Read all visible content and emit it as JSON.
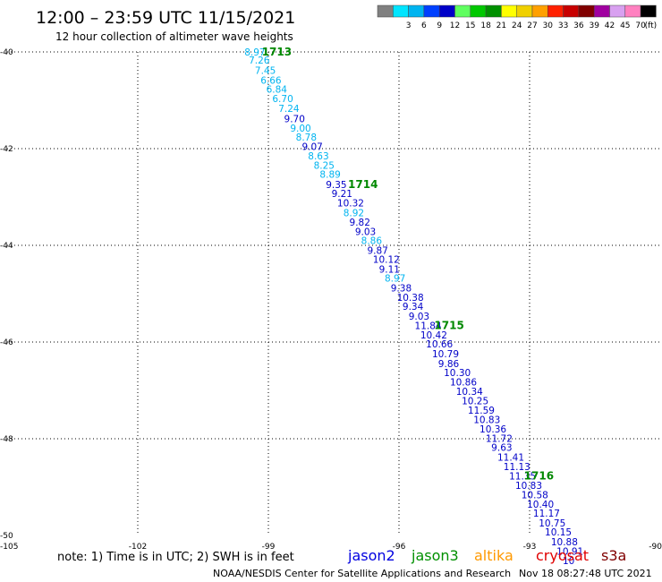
{
  "header": {
    "title": "12:00 – 23:59 UTC 11/15/2021",
    "subtitle": "12 hour collection of altimeter wave heights"
  },
  "legend": {
    "unit_label": "(ft)",
    "bins": [
      {
        "label": "",
        "color": "#808080"
      },
      {
        "label": "3",
        "color": "#00e5ff"
      },
      {
        "label": "6",
        "color": "#00b4f0"
      },
      {
        "label": "9",
        "color": "#0040ff"
      },
      {
        "label": "12",
        "color": "#0000c8"
      },
      {
        "label": "15",
        "color": "#60ff60"
      },
      {
        "label": "18",
        "color": "#00c800"
      },
      {
        "label": "21",
        "color": "#009000"
      },
      {
        "label": "24",
        "color": "#ffff00"
      },
      {
        "label": "27",
        "color": "#f0d000"
      },
      {
        "label": "30",
        "color": "#ffa000"
      },
      {
        "label": "33",
        "color": "#ff2000"
      },
      {
        "label": "36",
        "color": "#c80000"
      },
      {
        "label": "39",
        "color": "#800000"
      },
      {
        "label": "42",
        "color": "#a000a0"
      },
      {
        "label": "45",
        "color": "#d8a0f0"
      },
      {
        "label": "70",
        "color": "#ff80c0"
      },
      {
        "label": "",
        "color": "#000000"
      }
    ]
  },
  "axes": {
    "lon_ticks": [
      "-105",
      "-102",
      "-99",
      "-96",
      "-93",
      "-90"
    ],
    "lat_ticks": [
      "-40",
      "-42",
      "-44",
      "-46",
      "-48",
      "-50"
    ]
  },
  "map_data": {
    "lon_range": [
      -105,
      -90
    ],
    "lat_range": [
      -50,
      -40
    ],
    "lon_grid": [
      -102,
      -99,
      -96,
      -93
    ],
    "lat_grid": [
      -40,
      -42,
      -44,
      -46,
      -48
    ],
    "observations": [
      {
        "swh": "8.97",
        "lon": -99.55,
        "lat": -40.0,
        "color": "#00b4f0"
      },
      {
        "swh": "7.26",
        "lon": -99.45,
        "lat": -40.17,
        "color": "#00b4f0"
      },
      {
        "swh": "7.45",
        "lon": -99.31,
        "lat": -40.38,
        "color": "#00b4f0"
      },
      {
        "swh": "6.66",
        "lon": -99.18,
        "lat": -40.58,
        "color": "#00b4f0"
      },
      {
        "swh": "6.84",
        "lon": -99.05,
        "lat": -40.77,
        "color": "#00b4f0"
      },
      {
        "swh": "6.70",
        "lon": -98.91,
        "lat": -40.96,
        "color": "#00b4f0"
      },
      {
        "swh": "7.24",
        "lon": -98.77,
        "lat": -41.17,
        "color": "#00b4f0"
      },
      {
        "swh": "9.70",
        "lon": -98.64,
        "lat": -41.38,
        "color": "#0000c8"
      },
      {
        "swh": "9.00",
        "lon": -98.5,
        "lat": -41.57,
        "color": "#00b4f0"
      },
      {
        "swh": "8.78",
        "lon": -98.37,
        "lat": -41.76,
        "color": "#00b4f0"
      },
      {
        "swh": "9.07",
        "lon": -98.23,
        "lat": -41.95,
        "color": "#0000c8"
      },
      {
        "swh": "8.63",
        "lon": -98.09,
        "lat": -42.15,
        "color": "#00b4f0"
      },
      {
        "swh": "8.25",
        "lon": -97.96,
        "lat": -42.34,
        "color": "#00b4f0"
      },
      {
        "swh": "8.89",
        "lon": -97.82,
        "lat": -42.53,
        "color": "#00b4f0"
      },
      {
        "swh": "9.35",
        "lon": -97.68,
        "lat": -42.74,
        "color": "#0000c8"
      },
      {
        "swh": "9.21",
        "lon": -97.55,
        "lat": -42.93,
        "color": "#0000c8"
      },
      {
        "swh": "10.32",
        "lon": -97.42,
        "lat": -43.12,
        "color": "#0000c8"
      },
      {
        "swh": "8.92",
        "lon": -97.28,
        "lat": -43.32,
        "color": "#00b4f0"
      },
      {
        "swh": "9.82",
        "lon": -97.14,
        "lat": -43.52,
        "color": "#0000c8"
      },
      {
        "swh": "9.03",
        "lon": -97.01,
        "lat": -43.71,
        "color": "#0000c8"
      },
      {
        "swh": "8.86",
        "lon": -96.87,
        "lat": -43.9,
        "color": "#00b4f0"
      },
      {
        "swh": "9.87",
        "lon": -96.73,
        "lat": -44.1,
        "color": "#0000c8"
      },
      {
        "swh": "10.12",
        "lon": -96.6,
        "lat": -44.29,
        "color": "#0000c8"
      },
      {
        "swh": "9.11",
        "lon": -96.46,
        "lat": -44.49,
        "color": "#0000c8"
      },
      {
        "swh": "8.97",
        "lon": -96.33,
        "lat": -44.68,
        "color": "#00b4f0"
      },
      {
        "swh": "9.38",
        "lon": -96.19,
        "lat": -44.88,
        "color": "#0000c8"
      },
      {
        "swh": "10.38",
        "lon": -96.05,
        "lat": -45.07,
        "color": "#0000c8"
      },
      {
        "swh": "9.34",
        "lon": -95.92,
        "lat": -45.26,
        "color": "#0000c8"
      },
      {
        "swh": "9.03",
        "lon": -95.78,
        "lat": -45.46,
        "color": "#0000c8"
      },
      {
        "swh": "11.84",
        "lon": -95.64,
        "lat": -45.66,
        "color": "#0000c8"
      },
      {
        "swh": "10.42",
        "lon": -95.51,
        "lat": -45.85,
        "color": "#0000c8"
      },
      {
        "swh": "10.66",
        "lon": -95.38,
        "lat": -46.04,
        "color": "#0000c8"
      },
      {
        "swh": "10.79",
        "lon": -95.24,
        "lat": -46.24,
        "color": "#0000c8"
      },
      {
        "swh": "9.86",
        "lon": -95.1,
        "lat": -46.44,
        "color": "#0000c8"
      },
      {
        "swh": "10.30",
        "lon": -94.97,
        "lat": -46.63,
        "color": "#0000c8"
      },
      {
        "swh": "10.86",
        "lon": -94.83,
        "lat": -46.82,
        "color": "#0000c8"
      },
      {
        "swh": "10.34",
        "lon": -94.69,
        "lat": -47.02,
        "color": "#0000c8"
      },
      {
        "swh": "10.25",
        "lon": -94.56,
        "lat": -47.21,
        "color": "#0000c8"
      },
      {
        "swh": "11.59",
        "lon": -94.42,
        "lat": -47.41,
        "color": "#0000c8"
      },
      {
        "swh": "10.83",
        "lon": -94.29,
        "lat": -47.6,
        "color": "#0000c8"
      },
      {
        "swh": "10.36",
        "lon": -94.15,
        "lat": -47.8,
        "color": "#0000c8"
      },
      {
        "swh": "11.72",
        "lon": -94.01,
        "lat": -47.99,
        "color": "#0000c8"
      },
      {
        "swh": "9.63",
        "lon": -93.88,
        "lat": -48.18,
        "color": "#0000c8"
      },
      {
        "swh": "11.41",
        "lon": -93.74,
        "lat": -48.38,
        "color": "#0000c8"
      },
      {
        "swh": "11.13",
        "lon": -93.6,
        "lat": -48.57,
        "color": "#0000c8"
      },
      {
        "swh": "11.35",
        "lon": -93.47,
        "lat": -48.77,
        "color": "#0000c8"
      },
      {
        "swh": "10.83",
        "lon": -93.33,
        "lat": -48.96,
        "color": "#0000c8"
      },
      {
        "swh": "10.58",
        "lon": -93.19,
        "lat": -49.16,
        "color": "#0000c8"
      },
      {
        "swh": "10.40",
        "lon": -93.06,
        "lat": -49.35,
        "color": "#0000c8"
      },
      {
        "swh": "11.17",
        "lon": -92.92,
        "lat": -49.54,
        "color": "#0000c8"
      },
      {
        "swh": "10.75",
        "lon": -92.79,
        "lat": -49.74,
        "color": "#0000c8"
      },
      {
        "swh": "10.15",
        "lon": -92.65,
        "lat": -49.93,
        "color": "#0000c8"
      },
      {
        "swh": "10.88",
        "lon": -92.51,
        "lat": -50.13,
        "color": "#0000c8"
      },
      {
        "swh": "10.91",
        "lon": -92.38,
        "lat": -50.32,
        "color": "#0000c8"
      },
      {
        "swh": "10",
        "lon": -92.24,
        "lat": -50.52,
        "color": "#0000c8"
      }
    ],
    "time_marks": [
      {
        "label": "1713",
        "lon": -99.15,
        "lat": -40.0
      },
      {
        "label": "1714",
        "lon": -97.17,
        "lat": -42.74
      },
      {
        "label": "1715",
        "lon": -95.19,
        "lat": -45.66
      },
      {
        "label": "1716",
        "lon": -93.13,
        "lat": -48.77
      }
    ]
  },
  "footer": {
    "note": "note:  1) Time is in UTC;  2) SWH is in feet",
    "satellites": [
      {
        "name": "jason2",
        "color": "#0000e0"
      },
      {
        "name": "jason3",
        "color": "#009000"
      },
      {
        "name": "altika",
        "color": "#ff9900"
      },
      {
        "name": "cryosat",
        "color": "#e00000"
      },
      {
        "name": "s3a",
        "color": "#800000"
      }
    ],
    "credit": "NOAA/NESDIS Center for Satellite Applications and Research",
    "timestamp": "Nov 18 08:27:48 UTC 2021"
  }
}
